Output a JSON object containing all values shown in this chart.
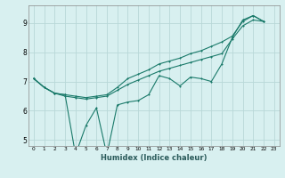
{
  "xlabel": "Humidex (Indice chaleur)",
  "bg_color": "#d8f0f0",
  "grid_color": "#b8d8d8",
  "line_color": "#1a7a6a",
  "xlim": [
    -0.5,
    23.5
  ],
  "ylim": [
    4.8,
    9.6
  ],
  "x": [
    0,
    1,
    2,
    3,
    4,
    5,
    6,
    7,
    8,
    9,
    10,
    11,
    12,
    13,
    14,
    15,
    16,
    17,
    18,
    19,
    20,
    21,
    22,
    23
  ],
  "line_zigzag": [
    7.1,
    6.8,
    6.6,
    6.55,
    4.5,
    5.5,
    6.1,
    4.5,
    6.2,
    6.3,
    6.35,
    6.55,
    7.2,
    7.1,
    6.85,
    7.15,
    7.1,
    7.0,
    7.6,
    8.5,
    9.1,
    9.25,
    9.05,
    null
  ],
  "line_smooth": [
    7.1,
    6.8,
    6.6,
    6.5,
    6.45,
    6.4,
    6.45,
    6.5,
    6.7,
    6.9,
    7.05,
    7.2,
    7.35,
    7.45,
    7.55,
    7.65,
    7.75,
    7.85,
    7.95,
    8.45,
    8.9,
    9.1,
    9.05,
    null
  ],
  "line_top": [
    7.1,
    6.8,
    6.6,
    6.55,
    6.5,
    6.45,
    6.5,
    6.55,
    6.8,
    7.1,
    7.25,
    7.4,
    7.6,
    7.7,
    7.8,
    7.95,
    8.05,
    8.2,
    8.35,
    8.55,
    9.05,
    9.25,
    9.05,
    null
  ]
}
